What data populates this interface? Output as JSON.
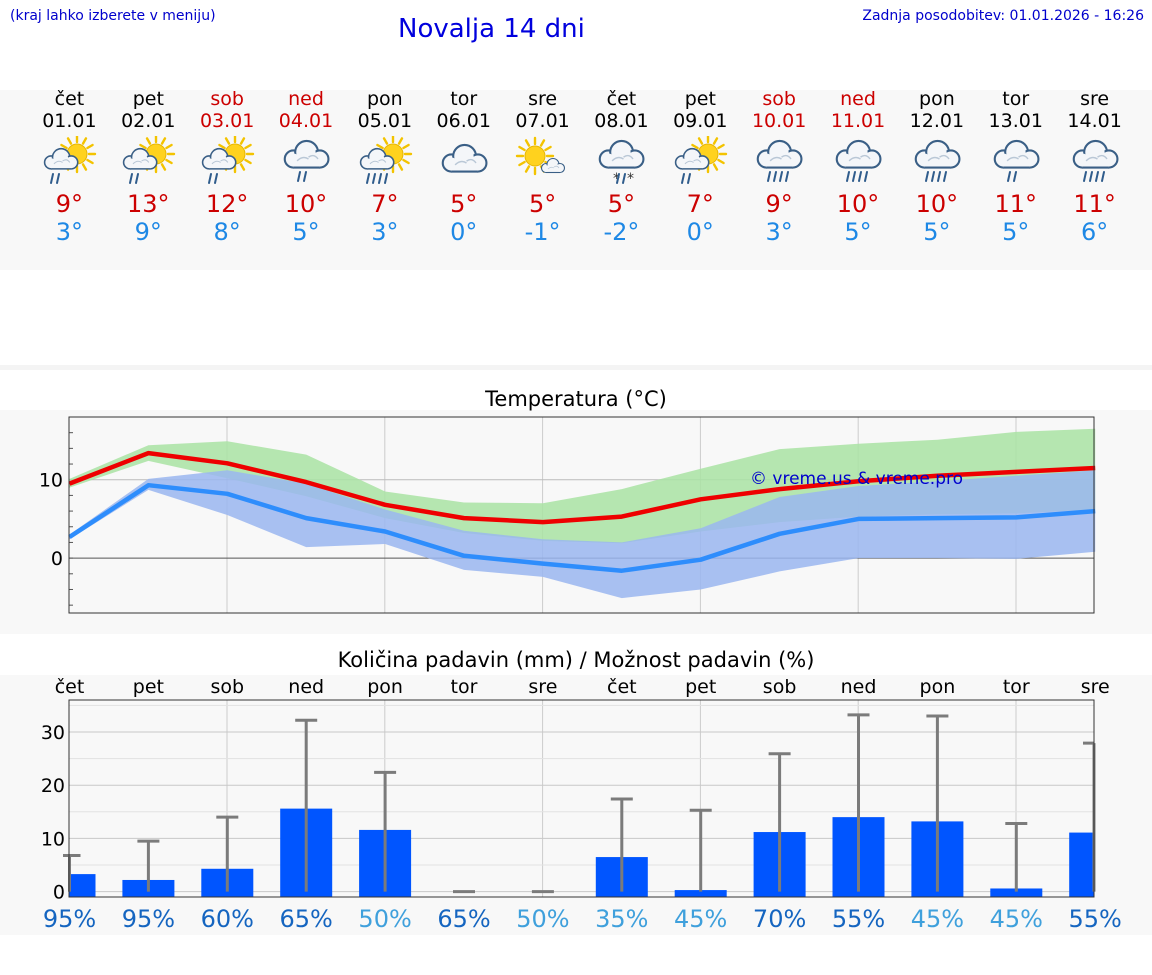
{
  "header": {
    "hint": "(kraj lahko izberete v meniju)",
    "title": "Novalja 14 dni",
    "updated": "Zadnja posodobitev: 01.01.2026 - 16:26"
  },
  "colors": {
    "weekday": "#000000",
    "weekend": "#cc0000",
    "max": "#cc0000",
    "min": "#1e88e5",
    "bar": "#0055ff",
    "pct_dark": "#1565c0",
    "pct_light": "#3fa0dc"
  },
  "days": [
    {
      "name": "čet",
      "date": "01.01",
      "weekend": false,
      "icon": "sun-cloud-rain-icon",
      "max": "9°",
      "min": "3°"
    },
    {
      "name": "pet",
      "date": "02.01",
      "weekend": false,
      "icon": "sun-cloud-rain-icon",
      "max": "13°",
      "min": "9°"
    },
    {
      "name": "sob",
      "date": "03.01",
      "weekend": true,
      "icon": "sun-cloud-rain-icon",
      "max": "12°",
      "min": "8°"
    },
    {
      "name": "ned",
      "date": "04.01",
      "weekend": true,
      "icon": "cloud-rain-icon",
      "max": "10°",
      "min": "5°"
    },
    {
      "name": "pon",
      "date": "05.01",
      "weekend": false,
      "icon": "sun-cloud-heavy-rain-icon",
      "max": "7°",
      "min": "3°"
    },
    {
      "name": "tor",
      "date": "06.01",
      "weekend": false,
      "icon": "cloud-icon",
      "max": "5°",
      "min": "0°"
    },
    {
      "name": "sre",
      "date": "07.01",
      "weekend": false,
      "icon": "sun-small-cloud-icon",
      "max": "5°",
      "min": "-1°"
    },
    {
      "name": "čet",
      "date": "08.01",
      "weekend": false,
      "icon": "cloud-sleet-icon",
      "max": "5°",
      "min": "-2°"
    },
    {
      "name": "pet",
      "date": "09.01",
      "weekend": false,
      "icon": "sun-cloud-rain-icon",
      "max": "7°",
      "min": "0°"
    },
    {
      "name": "sob",
      "date": "10.01",
      "weekend": true,
      "icon": "cloud-heavy-rain-icon",
      "max": "9°",
      "min": "3°"
    },
    {
      "name": "ned",
      "date": "11.01",
      "weekend": true,
      "icon": "cloud-heavy-rain-icon",
      "max": "10°",
      "min": "5°"
    },
    {
      "name": "pon",
      "date": "12.01",
      "weekend": false,
      "icon": "cloud-heavy-rain-icon",
      "max": "10°",
      "min": "5°"
    },
    {
      "name": "tor",
      "date": "13.01",
      "weekend": false,
      "icon": "cloud-rain-icon",
      "max": "11°",
      "min": "5°"
    },
    {
      "name": "sre",
      "date": "14.01",
      "weekend": false,
      "icon": "cloud-heavy-rain-icon",
      "max": "11°",
      "min": "6°"
    }
  ],
  "chart_data": [
    {
      "type": "line",
      "title": "Temperatura (°C)",
      "watermark": "© vreme.us & vreme.pro",
      "ylim": [
        -7,
        18
      ],
      "yticks": [
        0,
        10
      ],
      "grid": true,
      "series": [
        {
          "name": "max",
          "color": "#ee0000",
          "values": [
            9.5,
            13.4,
            12.1,
            9.7,
            6.8,
            5.1,
            4.6,
            5.3,
            7.5,
            8.8,
            9.8,
            10.5,
            11.0,
            11.5
          ],
          "band_low": [
            9.0,
            12.4,
            10.2,
            7.9,
            5.1,
            3.2,
            2.2,
            1.9,
            3.4,
            4.6,
            5.3,
            5.6,
            5.7,
            6.2
          ],
          "band_high": [
            10.1,
            14.4,
            14.9,
            13.2,
            8.5,
            7.1,
            7.0,
            8.8,
            11.4,
            13.9,
            14.6,
            15.1,
            16.1,
            16.5
          ],
          "band_color": "#a9e3a3"
        },
        {
          "name": "min",
          "color": "#2e8dfc",
          "values": [
            2.7,
            9.3,
            8.2,
            5.1,
            3.4,
            0.3,
            -0.7,
            -1.6,
            -0.2,
            3.1,
            5.0,
            5.1,
            5.2,
            6.0
          ],
          "band_low": [
            2.4,
            8.7,
            5.5,
            1.4,
            1.8,
            -1.5,
            -2.4,
            -5.1,
            -4.0,
            -1.7,
            0.0,
            0.0,
            -0.1,
            0.8
          ],
          "band_high": [
            3.0,
            10.1,
            11.2,
            9.5,
            6.2,
            3.5,
            2.4,
            2.0,
            3.8,
            7.8,
            9.2,
            9.8,
            10.5,
            11.2
          ],
          "band_color": "#9ab6f0"
        }
      ]
    },
    {
      "type": "bar",
      "title": "Količina padavin (mm) / Možnost padavin (%)",
      "categories": [
        "čet",
        "pet",
        "sob",
        "ned",
        "pon",
        "tor",
        "sre",
        "čet",
        "pet",
        "sob",
        "ned",
        "pon",
        "tor",
        "sre"
      ],
      "values": [
        3.3,
        2.2,
        4.3,
        15.6,
        11.6,
        0.0,
        0.0,
        6.5,
        0.3,
        11.2,
        14.0,
        13.2,
        0.6,
        11.1
      ],
      "error_high": [
        6.8,
        9.5,
        14.0,
        32.2,
        22.4,
        0.0,
        0.0,
        17.4,
        15.3,
        25.9,
        33.2,
        33.0,
        12.8,
        27.9
      ],
      "error_low": [
        0.0,
        0.0,
        0.0,
        0.0,
        0.0,
        0.0,
        0.0,
        0.0,
        0.0,
        0.0,
        0.0,
        0.0,
        0.0,
        0.0
      ],
      "ylim": [
        -1,
        36
      ],
      "yticks": [
        0,
        10,
        20,
        30
      ],
      "probability": [
        "95%",
        "95%",
        "60%",
        "65%",
        "50%",
        "65%",
        "50%",
        "35%",
        "45%",
        "70%",
        "55%",
        "45%",
        "45%",
        "55%"
      ],
      "probability_tone": [
        "dark",
        "dark",
        "dark",
        "dark",
        "light",
        "dark",
        "light",
        "light",
        "light",
        "dark",
        "dark",
        "light",
        "light",
        "dark"
      ]
    }
  ]
}
